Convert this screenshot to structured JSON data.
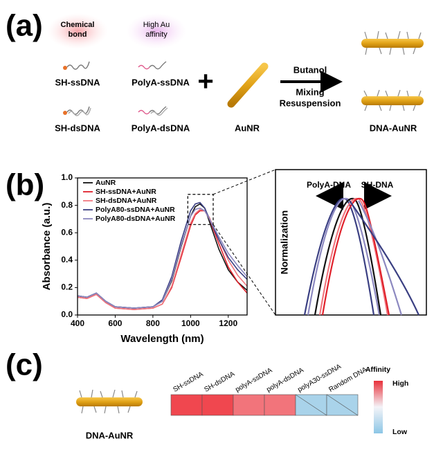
{
  "panel_a": {
    "label": "(a)",
    "chemical_bond": [
      "Chemical",
      "bond"
    ],
    "high_affinity": [
      "High Au",
      "affinity"
    ],
    "sh_ssdna": "SH-ssDNA",
    "polya_ssdna": "PolyA-ssDNA",
    "sh_dsdna": "SH-dsDNA",
    "polya_dsdna": "PolyA-dsDNA",
    "plus": "+",
    "aunr": "AuNR",
    "step1": "Butanol",
    "step2": "Mixing",
    "step3": "Resuspension",
    "product": "DNA-AuNR"
  },
  "panel_b_label": "(b)",
  "chart_data": {
    "type": "line",
    "xlabel": "Wavelength (nm)",
    "ylabel": "Absorbance (a.u.)",
    "x": [
      400,
      450,
      500,
      550,
      600,
      700,
      800,
      850,
      900,
      950,
      1000,
      1025,
      1050,
      1075,
      1100,
      1150,
      1200,
      1250,
      1300
    ],
    "series": [
      {
        "name": "AuNR",
        "color": "#111111",
        "values": [
          0.14,
          0.13,
          0.16,
          0.1,
          0.06,
          0.05,
          0.06,
          0.1,
          0.25,
          0.5,
          0.72,
          0.79,
          0.81,
          0.78,
          0.68,
          0.48,
          0.33,
          0.24,
          0.18
        ]
      },
      {
        "name": "SH-ssDNA+AuNR",
        "color": "#e0202a",
        "values": [
          0.13,
          0.12,
          0.15,
          0.09,
          0.05,
          0.04,
          0.05,
          0.08,
          0.2,
          0.42,
          0.65,
          0.73,
          0.76,
          0.76,
          0.7,
          0.52,
          0.35,
          0.24,
          0.16
        ]
      },
      {
        "name": "SH-dsDNA+AuNR",
        "color": "#f07880",
        "values": [
          0.13,
          0.12,
          0.15,
          0.09,
          0.05,
          0.04,
          0.05,
          0.08,
          0.21,
          0.44,
          0.67,
          0.74,
          0.77,
          0.76,
          0.71,
          0.55,
          0.4,
          0.29,
          0.21
        ]
      },
      {
        "name": "PolyA80-ssDNA+AuNR",
        "color": "#3a3f82",
        "values": [
          0.14,
          0.13,
          0.16,
          0.1,
          0.06,
          0.05,
          0.06,
          0.11,
          0.28,
          0.54,
          0.76,
          0.81,
          0.82,
          0.78,
          0.7,
          0.55,
          0.42,
          0.33,
          0.26
        ]
      },
      {
        "name": "PolyA80-dsDNA+AuNR",
        "color": "#8c88c0",
        "values": [
          0.14,
          0.13,
          0.16,
          0.1,
          0.06,
          0.05,
          0.06,
          0.1,
          0.26,
          0.51,
          0.72,
          0.77,
          0.78,
          0.76,
          0.7,
          0.57,
          0.45,
          0.36,
          0.28
        ]
      }
    ],
    "xlim": [
      400,
      1300
    ],
    "xticks": [
      400,
      600,
      800,
      1000,
      1200
    ],
    "ylim": [
      0,
      1
    ],
    "yticks": [
      {
        "value": 0,
        "label": "0.0"
      },
      0.2,
      0.4,
      0.6,
      0.8,
      {
        "value": 1,
        "label": "1.0"
      }
    ],
    "legend": "upper left"
  },
  "inset": {
    "ylabel": "Normalization",
    "left": "PolyA-DNA",
    "right": "SH-DNA"
  },
  "panel_c": {
    "label": "(c)",
    "rod_label": "DNA-AuNR",
    "cells": [
      "SH-ssDNA",
      "SH-dsDNA",
      "polyA-ssDNA",
      "polyA-dsDNA",
      "polyA30-ssDNA",
      "Random DNA"
    ],
    "colorbar_title": "Affinity",
    "high": "High",
    "low": "Low"
  }
}
